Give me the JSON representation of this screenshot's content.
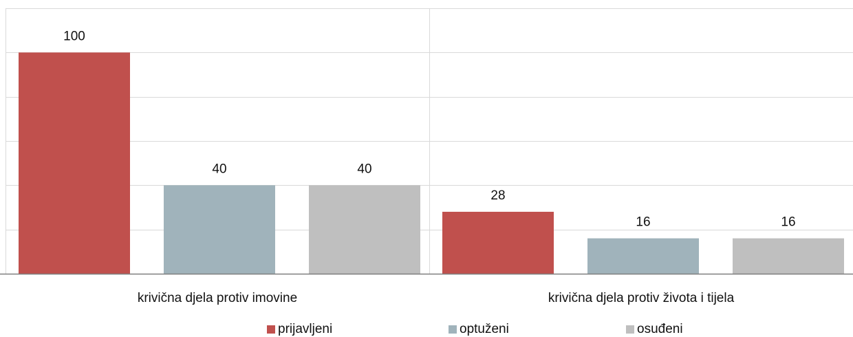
{
  "chart_data": {
    "type": "bar",
    "categories": [
      "krivična djela protiv imovine",
      "krivična djela protiv života i tijela"
    ],
    "series": [
      {
        "name": "prijavljeni",
        "values": [
          100,
          28
        ],
        "color": "#c0504d"
      },
      {
        "name": "optuženi",
        "values": [
          40,
          16
        ],
        "color": "#a0b3bb"
      },
      {
        "name": "osuđeni",
        "values": [
          40,
          16
        ],
        "color": "#bfbfbf"
      }
    ],
    "ylim": [
      0,
      120
    ],
    "grid": true,
    "legend_position": "bottom",
    "data_labels": true
  }
}
